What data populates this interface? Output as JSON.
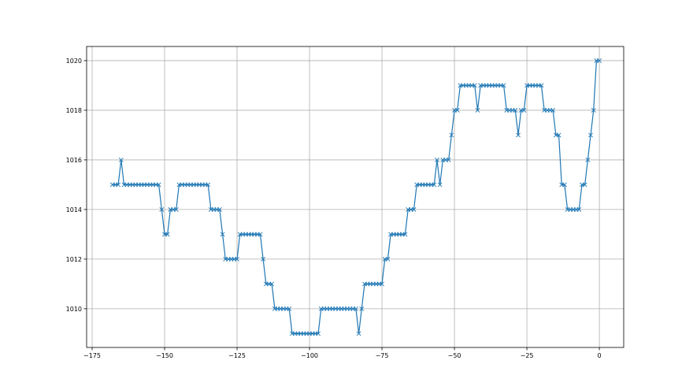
{
  "chart_data": {
    "type": "line",
    "title": "",
    "xlabel": "",
    "ylabel": "",
    "marker": "x",
    "color": "#1f77b4",
    "grid": true,
    "xlim": [
      -176.9,
      8.4
    ],
    "ylim": [
      1008.44,
      1020.57
    ],
    "xticks": [
      -175,
      -150,
      -125,
      -100,
      -75,
      -50,
      -25,
      0
    ],
    "xtick_labels": [
      "−175",
      "−150",
      "−125",
      "−100",
      "−75",
      "−50",
      "−25",
      "0"
    ],
    "yticks": [
      1010,
      1012,
      1014,
      1016,
      1018,
      1020
    ],
    "ytick_labels": [
      "1010",
      "1012",
      "1014",
      "1016",
      "1018",
      "1020"
    ],
    "series": [
      {
        "x": [
          -168,
          -167,
          -166,
          -165,
          -164,
          -163,
          -162,
          -161,
          -160,
          -159,
          -158,
          -157,
          -156,
          -155,
          -154,
          -153,
          -152,
          -151,
          -150,
          -149,
          -148,
          -147,
          -146,
          -145,
          -144,
          -143,
          -142,
          -141,
          -140,
          -139,
          -138,
          -137,
          -136,
          -135,
          -134,
          -133,
          -132,
          -131,
          -130,
          -129,
          -128,
          -127,
          -126,
          -125,
          -124,
          -123,
          -122,
          -121,
          -120,
          -119,
          -118,
          -117,
          -116,
          -115,
          -114,
          -113,
          -112,
          -111,
          -110,
          -109,
          -108,
          -107,
          -106,
          -105,
          -104,
          -103,
          -102,
          -101,
          -100,
          -99,
          -98,
          -97,
          -96,
          -95,
          -94,
          -93,
          -92,
          -91,
          -90,
          -89,
          -88,
          -87,
          -86,
          -85,
          -84,
          -83,
          -82,
          -81,
          -80,
          -79,
          -78,
          -77,
          -76,
          -75,
          -74,
          -73,
          -72,
          -71,
          -70,
          -69,
          -68,
          -67,
          -66,
          -65,
          -64,
          -63,
          -62,
          -61,
          -60,
          -59,
          -58,
          -57,
          -56,
          -55,
          -54,
          -53,
          -52,
          -51,
          -50,
          -49,
          -48,
          -47,
          -46,
          -45,
          -44,
          -43,
          -42,
          -41,
          -40,
          -39,
          -38,
          -37,
          -36,
          -35,
          -34,
          -33,
          -32,
          -31,
          -30,
          -29,
          -28,
          -27,
          -26,
          -25,
          -24,
          -23,
          -22,
          -21,
          -20,
          -19,
          -18,
          -17,
          -16,
          -15,
          -14,
          -13,
          -12,
          -11,
          -10,
          -9,
          -8,
          -7,
          -6,
          -5,
          -4,
          -3,
          -2,
          -1,
          0
        ],
        "y": [
          1015,
          1015,
          1015,
          1016,
          1015,
          1015,
          1015,
          1015,
          1015,
          1015,
          1015,
          1015,
          1015,
          1015,
          1015,
          1015,
          1015,
          1014,
          1013,
          1013,
          1014,
          1014,
          1014,
          1015,
          1015,
          1015,
          1015,
          1015,
          1015,
          1015,
          1015,
          1015,
          1015,
          1015,
          1014,
          1014,
          1014,
          1014,
          1013,
          1012,
          1012,
          1012,
          1012,
          1012,
          1013,
          1013,
          1013,
          1013,
          1013,
          1013,
          1013,
          1013,
          1012,
          1011,
          1011,
          1011,
          1010,
          1010,
          1010,
          1010,
          1010,
          1010,
          1009,
          1009,
          1009,
          1009,
          1009,
          1009,
          1009,
          1009,
          1009,
          1009,
          1010,
          1010,
          1010,
          1010,
          1010,
          1010,
          1010,
          1010,
          1010,
          1010,
          1010,
          1010,
          1010,
          1009,
          1010,
          1011,
          1011,
          1011,
          1011,
          1011,
          1011,
          1011,
          1012,
          1012,
          1013,
          1013,
          1013,
          1013,
          1013,
          1013,
          1014,
          1014,
          1014,
          1015,
          1015,
          1015,
          1015,
          1015,
          1015,
          1015,
          1016,
          1015,
          1016,
          1016,
          1016,
          1017,
          1018,
          1018,
          1019,
          1019,
          1019,
          1019,
          1019,
          1019,
          1018,
          1019,
          1019,
          1019,
          1019,
          1019,
          1019,
          1019,
          1019,
          1019,
          1018,
          1018,
          1018,
          1018,
          1017,
          1018,
          1018,
          1019,
          1019,
          1019,
          1019,
          1019,
          1019,
          1018,
          1018,
          1018,
          1018,
          1017,
          1017,
          1015,
          1015,
          1014,
          1014,
          1014,
          1014,
          1014,
          1015,
          1015,
          1016,
          1017,
          1018,
          1020,
          1020
        ]
      }
    ]
  }
}
